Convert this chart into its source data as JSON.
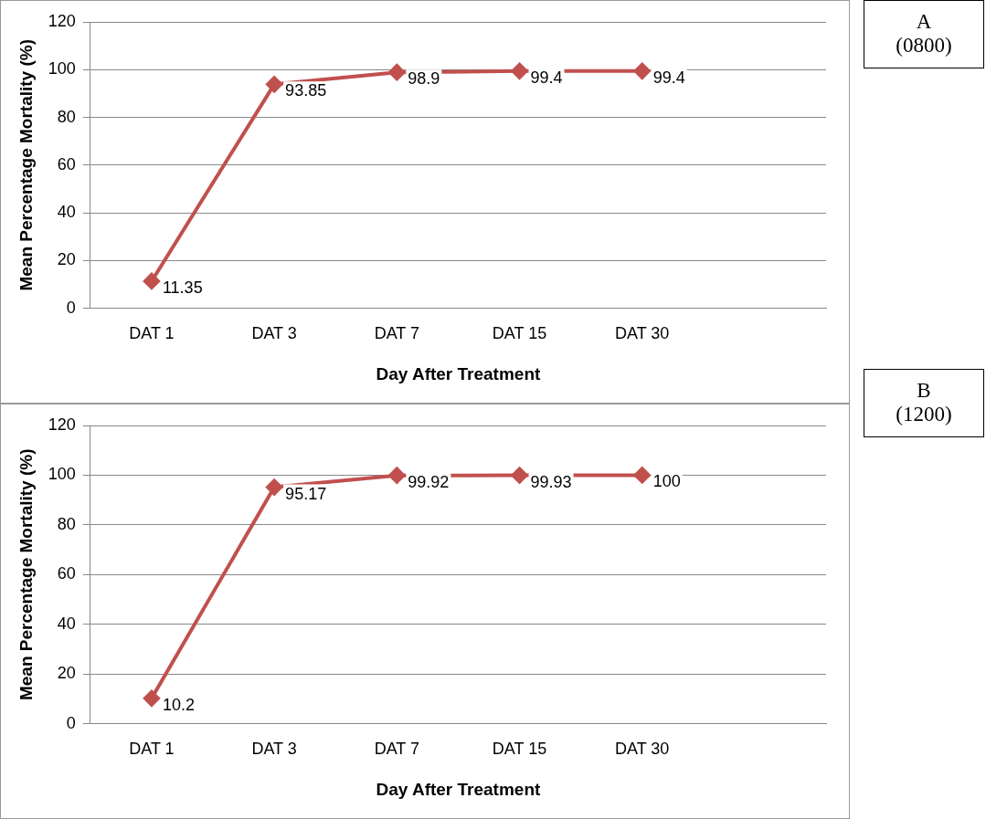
{
  "chart_data": [
    {
      "type": "line",
      "categories": [
        "DAT 1",
        "DAT 3",
        "DAT 7",
        "DAT 15",
        "DAT 30",
        null
      ],
      "values": [
        11.35,
        93.85,
        98.9,
        99.4,
        99.4,
        null
      ],
      "color": "#c0504d",
      "ylim": [
        0,
        120
      ],
      "yticks": [
        0,
        20,
        40,
        60,
        80,
        100,
        120
      ],
      "grid": "y",
      "legend": false,
      "marker": "diamond",
      "line_style": "solid",
      "data_labels": true,
      "ylabel": "Mean Percentage Mortality (%)",
      "xlabel": "Day After Treatment",
      "annotations": [
        "A (0800)"
      ]
    },
    {
      "type": "line",
      "categories": [
        "DAT 1",
        "DAT 3",
        "DAT 7",
        "DAT 15",
        "DAT 30",
        null
      ],
      "values": [
        10.2,
        95.17,
        99.92,
        99.93,
        100,
        null
      ],
      "color": "#c0504d",
      "ylim": [
        0,
        120
      ],
      "yticks": [
        0,
        20,
        40,
        60,
        80,
        100,
        120
      ],
      "grid": "y",
      "legend": false,
      "marker": "diamond",
      "line_style": "solid",
      "data_labels": true,
      "ylabel": "Mean Percentage Mortality (%)",
      "xlabel": "Day After Treatment",
      "annotations": [
        "B (1200)"
      ]
    }
  ]
}
